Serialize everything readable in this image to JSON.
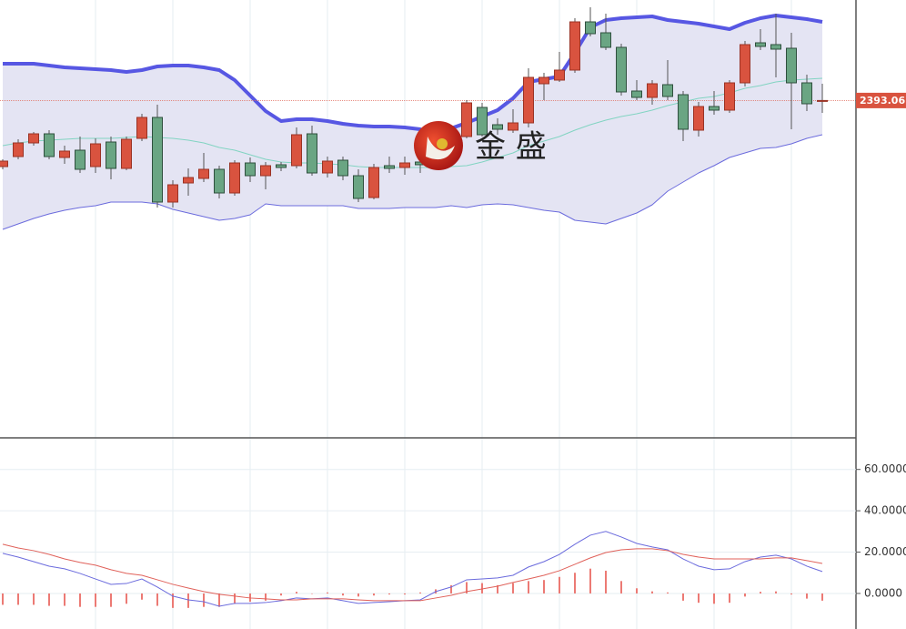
{
  "chart_data": [
    {
      "type": "candlestick",
      "watermark": "金 盛",
      "ylim": [
        2356.1,
        2404.1
      ],
      "last_price": 2393.06,
      "up_color": "#d9533f",
      "down_color": "#6aa583",
      "band_fill": "#e4e4f3",
      "open": [
        2385.8,
        2386.9,
        2388.4,
        2389.4,
        2386.8,
        2387.6,
        2385.8,
        2388.5,
        2385.6,
        2388.9,
        2391.2,
        2381.9,
        2384.0,
        2384.5,
        2385.5,
        2382.9,
        2386.2,
        2384.8,
        2386.0,
        2385.9,
        2389.4,
        2385.1,
        2386.5,
        2384.8,
        2382.4,
        2385.9,
        2385.7,
        2386.3,
        2386.6,
        2388.9,
        2389.1,
        2392.3,
        2390.4,
        2389.8,
        2390.6,
        2394.9,
        2395.3,
        2396.4,
        2401.7,
        2400.5,
        2398.9,
        2394.1,
        2393.4,
        2394.8,
        2393.7,
        2389.8,
        2392.4,
        2392.0,
        2395.0,
        2399.4,
        2399.2,
        2398.8,
        2395.0,
        2393.0
      ],
      "high": [
        2386.6,
        2388.8,
        2389.6,
        2389.8,
        2388.1,
        2389.1,
        2388.9,
        2389.1,
        2389.1,
        2391.6,
        2392.6,
        2384.3,
        2385.6,
        2387.3,
        2385.9,
        2386.5,
        2386.8,
        2386.3,
        2386.3,
        2390.1,
        2390.3,
        2386.9,
        2386.9,
        2385.5,
        2386.1,
        2386.9,
        2386.9,
        2387.1,
        2389.6,
        2390.1,
        2393.1,
        2392.8,
        2391.1,
        2392.1,
        2396.6,
        2396.1,
        2398.4,
        2402.1,
        2403.3,
        2402.6,
        2399.3,
        2395.3,
        2395.3,
        2397.5,
        2394.1,
        2392.9,
        2394.1,
        2395.3,
        2399.6,
        2400.9,
        2402.6,
        2400.5,
        2395.9,
        2394.9
      ],
      "low": [
        2385.5,
        2386.6,
        2388.1,
        2386.6,
        2386.1,
        2385.1,
        2385.1,
        2384.4,
        2385.4,
        2388.6,
        2381.3,
        2381.3,
        2382.6,
        2384.1,
        2382.3,
        2382.6,
        2384.1,
        2383.3,
        2385.3,
        2385.6,
        2384.8,
        2384.6,
        2384.3,
        2381.9,
        2382.2,
        2385.1,
        2384.9,
        2385.1,
        2386.3,
        2388.6,
        2388.9,
        2389.1,
        2389.3,
        2389.5,
        2390.1,
        2393.1,
        2395.1,
        2396.1,
        2400.1,
        2398.6,
        2393.6,
        2393.1,
        2392.6,
        2393.1,
        2388.6,
        2389.1,
        2391.5,
        2391.7,
        2394.6,
        2398.6,
        2395.6,
        2389.9,
        2391.9,
        2391.7
      ],
      "close": [
        2386.4,
        2388.4,
        2389.4,
        2386.9,
        2387.5,
        2385.5,
        2388.3,
        2385.6,
        2388.8,
        2391.2,
        2381.9,
        2383.8,
        2384.6,
        2385.5,
        2382.9,
        2386.2,
        2384.8,
        2385.9,
        2385.7,
        2389.3,
        2385.1,
        2386.4,
        2384.8,
        2382.3,
        2385.7,
        2385.6,
        2386.2,
        2386.0,
        2389.1,
        2389.6,
        2392.8,
        2389.3,
        2389.9,
        2390.6,
        2395.6,
        2395.6,
        2396.4,
        2401.7,
        2400.4,
        2398.9,
        2394.0,
        2393.4,
        2394.9,
        2393.5,
        2389.9,
        2392.4,
        2392.0,
        2395.0,
        2399.2,
        2399.0,
        2398.7,
        2395.0,
        2392.7,
        2393.06
      ],
      "series": [
        {
          "color": "#5757e3",
          "width": 4,
          "values": [
            2397.1,
            2397.1,
            2397.1,
            2396.9,
            2396.7,
            2396.6,
            2396.5,
            2396.4,
            2396.2,
            2396.4,
            2396.8,
            2396.9,
            2396.9,
            2396.7,
            2396.4,
            2395.3,
            2393.6,
            2391.9,
            2390.8,
            2391.0,
            2391.0,
            2390.8,
            2390.5,
            2390.3,
            2390.2,
            2390.2,
            2390.1,
            2389.9,
            2389.4,
            2390.0,
            2390.6,
            2391.3,
            2392.0,
            2393.3,
            2395.1,
            2395.4,
            2395.7,
            2398.3,
            2401.1,
            2401.9,
            2402.1,
            2402.2,
            2402.3,
            2401.9,
            2401.7,
            2401.5,
            2401.2,
            2400.9,
            2401.6,
            2402.1,
            2402.4,
            2402.2,
            2402.0,
            2401.7
          ]
        },
        {
          "color": "#82d4c2",
          "width": 1,
          "values": [
            2388.1,
            2388.4,
            2388.6,
            2388.7,
            2388.8,
            2388.9,
            2388.9,
            2388.9,
            2389.0,
            2389.1,
            2389.0,
            2388.9,
            2388.7,
            2388.4,
            2387.9,
            2387.6,
            2387.1,
            2386.6,
            2386.3,
            2386.2,
            2386.2,
            2386.1,
            2386.0,
            2385.8,
            2385.7,
            2385.7,
            2385.7,
            2385.7,
            2385.7,
            2385.8,
            2385.9,
            2386.3,
            2386.8,
            2387.3,
            2388.1,
            2388.6,
            2389.1,
            2389.8,
            2390.4,
            2390.9,
            2391.3,
            2391.6,
            2392.0,
            2392.5,
            2392.9,
            2393.3,
            2393.5,
            2393.9,
            2394.4,
            2394.7,
            2395.1,
            2395.3,
            2395.4,
            2395.5
          ]
        },
        {
          "color": "#6b6bdd",
          "width": 1,
          "values": [
            2378.9,
            2379.5,
            2380.1,
            2380.6,
            2381.0,
            2381.3,
            2381.5,
            2381.9,
            2381.9,
            2381.9,
            2381.7,
            2381.1,
            2380.7,
            2380.3,
            2379.9,
            2380.1,
            2380.5,
            2381.7,
            2381.5,
            2381.5,
            2381.5,
            2381.5,
            2381.5,
            2381.2,
            2381.2,
            2381.2,
            2381.3,
            2381.3,
            2381.3,
            2381.5,
            2381.3,
            2381.6,
            2381.7,
            2381.6,
            2381.3,
            2381.0,
            2380.8,
            2379.9,
            2379.7,
            2379.5,
            2380.1,
            2380.7,
            2381.6,
            2383.1,
            2384.1,
            2385.1,
            2385.9,
            2386.8,
            2387.3,
            2387.8,
            2387.9,
            2388.3,
            2388.9,
            2389.3
          ]
        }
      ]
    },
    {
      "type": "macd",
      "ylim": [
        -17.2,
        74.4
      ],
      "grid": true,
      "yticks": [
        {
          "value": 60,
          "label": "60.0000"
        },
        {
          "value": 40,
          "label": "40.0000"
        },
        {
          "value": 20,
          "label": "20.0000"
        },
        {
          "value": 0,
          "label": "0.0000"
        }
      ],
      "histogram": {
        "color": "#ec7a74",
        "values": [
          -5.5,
          -5.5,
          -5.5,
          -6,
          -6,
          -6.5,
          -6.5,
          -6.5,
          -5,
          -3,
          -6,
          -7,
          -7,
          -6.5,
          -6.5,
          -5,
          -4,
          -3.5,
          -1,
          0.8,
          0,
          0.5,
          -1,
          -1.5,
          -1,
          -0.5,
          -0.5,
          0.5,
          2,
          4,
          5.5,
          5,
          4,
          5,
          6,
          6.5,
          8,
          10,
          12,
          11,
          6,
          2.5,
          1,
          0.5,
          -3.5,
          -4.5,
          -5,
          -4.5,
          -1.5,
          0.8,
          1,
          -0.5,
          -2.5,
          -3.5
        ]
      },
      "series": [
        {
          "color": "#6b6bdd",
          "values": [
            19.4,
            17.6,
            15.4,
            13.2,
            11.9,
            9.7,
            7.0,
            4.4,
            4.8,
            7.0,
            3.1,
            -1.3,
            -3.1,
            -4.0,
            -6.2,
            -4.8,
            -4.8,
            -4.4,
            -3.5,
            -2.2,
            -2.6,
            -2.2,
            -3.5,
            -4.8,
            -4.4,
            -4.0,
            -3.5,
            -3.1,
            0.9,
            3.1,
            6.6,
            7.0,
            7.5,
            8.8,
            12.8,
            15.4,
            18.9,
            23.8,
            28.2,
            30.0,
            27.3,
            24.2,
            22.5,
            21.1,
            16.7,
            13.2,
            11.5,
            11.9,
            15.4,
            17.6,
            18.5,
            16.7,
            13.2,
            10.6
          ]
        },
        {
          "color": "#e0615a",
          "values": [
            23.8,
            22.0,
            20.7,
            18.9,
            16.7,
            15.0,
            13.7,
            11.5,
            9.7,
            8.8,
            6.6,
            4.4,
            2.6,
            0.9,
            -0.4,
            -1.3,
            -2.2,
            -2.6,
            -3.1,
            -3.1,
            -2.6,
            -2.6,
            -2.6,
            -3.1,
            -3.5,
            -3.5,
            -3.5,
            -3.5,
            -2.2,
            -0.9,
            0.9,
            2.2,
            3.5,
            5.3,
            7.0,
            8.8,
            11.0,
            14.1,
            17.2,
            19.8,
            21.1,
            21.6,
            21.6,
            20.7,
            18.9,
            17.6,
            16.7,
            16.7,
            16.7,
            16.7,
            17.2,
            17.2,
            15.9,
            14.5
          ]
        }
      ]
    }
  ]
}
